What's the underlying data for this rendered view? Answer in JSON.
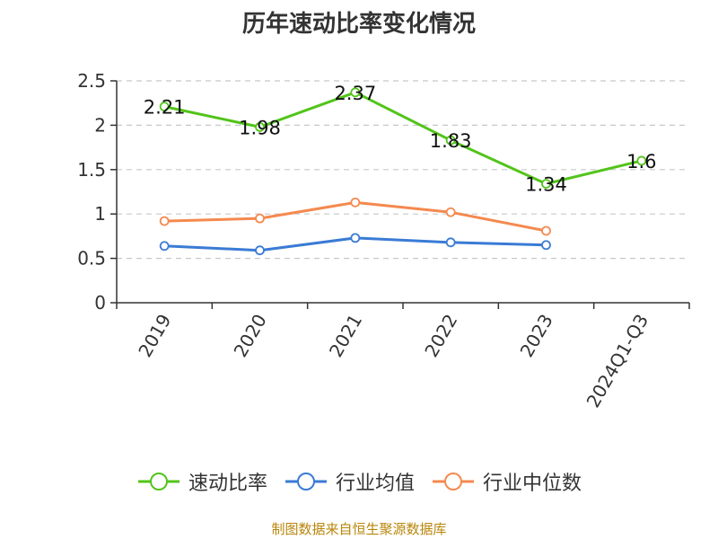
{
  "chart_data": {
    "type": "line",
    "title": "历年速动比率变化情况",
    "categories": [
      "2019",
      "2020",
      "2021",
      "2022",
      "2023",
      "2024Q1-Q3"
    ],
    "series": [
      {
        "name": "速动比率",
        "color": "#52c41a",
        "values": [
          2.21,
          1.98,
          2.37,
          1.83,
          1.34,
          1.6
        ],
        "data_labels": [
          "2.21",
          "1.98",
          "2.37",
          "1.83",
          "1.34",
          "1.6"
        ]
      },
      {
        "name": "行业均值",
        "color": "#3a7bd5",
        "values": [
          0.64,
          0.59,
          0.73,
          0.68,
          0.65,
          null
        ]
      },
      {
        "name": "行业中位数",
        "color": "#f5894f",
        "values": [
          0.92,
          0.95,
          1.13,
          1.02,
          0.81,
          null
        ]
      }
    ],
    "y_ticks": [
      "0",
      "0.5",
      "1",
      "1.5",
      "2",
      "2.5"
    ],
    "ylim": [
      0,
      2.5
    ],
    "grid": true,
    "legend_position": "bottom"
  },
  "source_text": "制图数据来自恒生聚源数据库"
}
